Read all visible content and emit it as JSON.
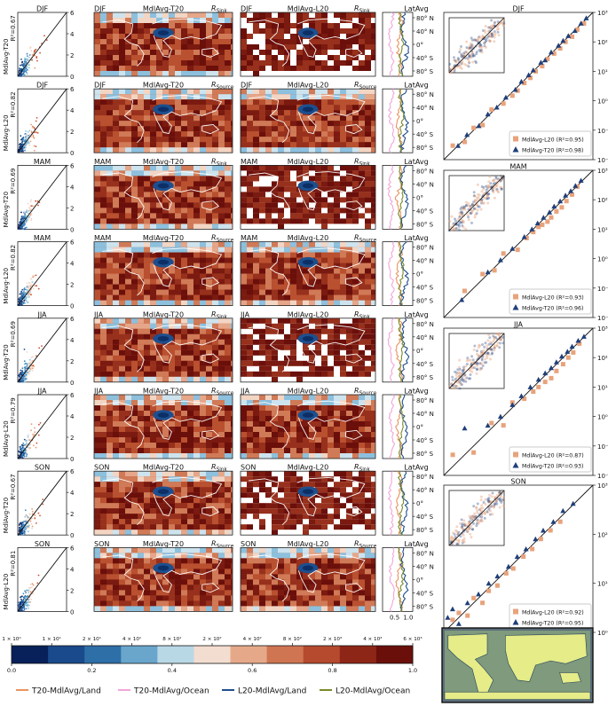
{
  "figure": {
    "seasons": [
      "DJF",
      "MAM",
      "JJA",
      "SON"
    ],
    "row_labels": {
      "scatter_t20": "MdlAvg-T20",
      "scatter_l20": "MdlAvg-L20",
      "map_t20": "MdlAvg-T20",
      "map_l20": "MdlAvg-L20",
      "r_sink": "R",
      "r_source": "R",
      "sink_sub": "Sink",
      "source_sub": "Source",
      "latavg": "LatAvg",
      "r2_prefix": "R²="
    },
    "colorbar": {
      "top_ticks": [
        "1 × 10⁰",
        "1 × 10¹",
        "2 × 10¹",
        "4 × 10¹",
        "8 × 10¹",
        "2 × 10²",
        "4 × 10²",
        "8 × 10²",
        "2 × 10³",
        "4 × 10³",
        "6 × 10³"
      ],
      "bottom_ticks": [
        "0.0",
        "0.2",
        "0.4",
        "0.6",
        "0.8",
        "1.0"
      ],
      "colors": [
        "#08215a",
        "#1a4a8c",
        "#2f6fa8",
        "#6aa6cc",
        "#b9d8e6",
        "#f3ddd0",
        "#e5a98a",
        "#cf7552",
        "#b54a2e",
        "#8e2617",
        "#6b0f0b"
      ]
    },
    "legend": [
      {
        "label": "T20-MdlAvg/Land",
        "color": "#e8945f"
      },
      {
        "label": "T20-MdlAvg/Ocean",
        "color": "#f2a6d9"
      },
      {
        "label": "L20-MdlAvg/Land",
        "color": "#1f4e8c"
      },
      {
        "label": "L20-MdlAvg/Ocean",
        "color": "#7a8a2a"
      }
    ],
    "lat_ticks": [
      "80° N",
      "40° N",
      "0°",
      "40° S",
      "80° S"
    ],
    "lat_xticks": [
      "0.5",
      "1.0"
    ]
  },
  "chart_data": [
    {
      "type": "scatter",
      "panel": "density-scatter",
      "season": "DJF",
      "ylabel": "MdlAvg-T20",
      "r2": "0.67",
      "yticks": [
        "0",
        "2",
        "4",
        "6"
      ]
    },
    {
      "type": "scatter",
      "panel": "density-scatter",
      "season": "DJF",
      "ylabel": "MdlAvg-L20",
      "r2": "0.82",
      "yticks": [
        "0",
        "2",
        "4",
        "6"
      ]
    },
    {
      "type": "scatter",
      "panel": "density-scatter",
      "season": "MAM",
      "ylabel": "MdlAvg-T20",
      "r2": "0.69",
      "yticks": [
        "0",
        "2",
        "4",
        "6"
      ]
    },
    {
      "type": "scatter",
      "panel": "density-scatter",
      "season": "MAM",
      "ylabel": "MdlAvg-L20",
      "r2": "0.82",
      "yticks": [
        "0",
        "2",
        "4",
        "6"
      ]
    },
    {
      "type": "scatter",
      "panel": "density-scatter",
      "season": "JJA",
      "ylabel": "MdlAvg-T20",
      "r2": "0.69",
      "yticks": [
        "0",
        "2",
        "4",
        "6"
      ]
    },
    {
      "type": "scatter",
      "panel": "density-scatter",
      "season": "JJA",
      "ylabel": "MdlAvg-L20",
      "r2": "0.79",
      "yticks": [
        "0",
        "2",
        "4",
        "6"
      ]
    },
    {
      "type": "scatter",
      "panel": "density-scatter",
      "season": "SON",
      "ylabel": "MdlAvg-T20",
      "r2": "0.67",
      "yticks": [
        "0",
        "2",
        "4",
        "6"
      ]
    },
    {
      "type": "scatter",
      "panel": "density-scatter",
      "season": "SON",
      "ylabel": "MdlAvg-L20",
      "r2": "0.81",
      "yticks": [
        "0",
        "2",
        "4",
        "6"
      ]
    },
    {
      "type": "scatter",
      "panel": "log-scatter",
      "season": "DJF",
      "xscale": "log",
      "yscale": "log",
      "yticks": [
        "10⁻²",
        "10⁻¹",
        "10⁰",
        "10¹",
        "10²",
        "10³"
      ],
      "series": [
        {
          "name": "MdlAvg-L20",
          "r2": "0.95",
          "marker": "square",
          "color": "#e8a37c",
          "points": [
            [
              0.02,
              0.03
            ],
            [
              0.05,
              0.04
            ],
            [
              0.1,
              0.12
            ],
            [
              0.2,
              0.15
            ],
            [
              0.4,
              0.5
            ],
            [
              1,
              0.8
            ],
            [
              2,
              1.5
            ],
            [
              3,
              2.2
            ],
            [
              5,
              4
            ],
            [
              8,
              6
            ],
            [
              12,
              10
            ],
            [
              20,
              15
            ],
            [
              30,
              26
            ],
            [
              50,
              40
            ],
            [
              80,
              60
            ],
            [
              120,
              100
            ],
            [
              200,
              150
            ],
            [
              300,
              260
            ],
            [
              500,
              420
            ]
          ]
        },
        {
          "name": "MdlAvg-T20",
          "r2": "0.98",
          "marker": "triangle",
          "color": "#1f3f7a",
          "points": [
            [
              0.03,
              0.03
            ],
            [
              0.06,
              0.07
            ],
            [
              0.15,
              0.14
            ],
            [
              0.3,
              0.35
            ],
            [
              0.6,
              0.6
            ],
            [
              1.2,
              1.3
            ],
            [
              2.5,
              2.4
            ],
            [
              4,
              4.5
            ],
            [
              7,
              7.5
            ],
            [
              10,
              11
            ],
            [
              18,
              20
            ],
            [
              25,
              24
            ],
            [
              40,
              45
            ],
            [
              70,
              75
            ],
            [
              100,
              110
            ],
            [
              150,
              160
            ],
            [
              250,
              240
            ],
            [
              400,
              430
            ],
            [
              600,
              640
            ]
          ]
        }
      ]
    },
    {
      "type": "scatter",
      "panel": "log-scatter",
      "season": "MAM",
      "xscale": "log",
      "yscale": "log",
      "yticks": [
        "10⁻²",
        "10⁻¹",
        "10⁰",
        "10¹",
        "10²",
        "10³"
      ],
      "series": [
        {
          "name": "MdlAvg-L20",
          "r2": "0.93",
          "marker": "square",
          "color": "#e8a37c",
          "points": [
            [
              0.05,
              0.08
            ],
            [
              0.2,
              0.3
            ],
            [
              0.5,
              0.4
            ],
            [
              1,
              1.5
            ],
            [
              3,
              2
            ],
            [
              6,
              5
            ],
            [
              10,
              8
            ],
            [
              15,
              12
            ],
            [
              20,
              14
            ],
            [
              30,
              18
            ],
            [
              40,
              25
            ],
            [
              60,
              40
            ],
            [
              90,
              55
            ],
            [
              130,
              90
            ],
            [
              200,
              150
            ],
            [
              300,
              280
            ]
          ]
        },
        {
          "name": "MdlAvg-T20",
          "r2": "0.96",
          "marker": "triangle",
          "color": "#1f3f7a",
          "points": [
            [
              0.04,
              0.04
            ],
            [
              0.3,
              0.35
            ],
            [
              0.8,
              0.9
            ],
            [
              2,
              2.2
            ],
            [
              5,
              5.5
            ],
            [
              9,
              10
            ],
            [
              14,
              16
            ],
            [
              22,
              25
            ],
            [
              35,
              38
            ],
            [
              50,
              60
            ],
            [
              80,
              90
            ],
            [
              120,
              140
            ],
            [
              180,
              200
            ],
            [
              260,
              300
            ],
            [
              400,
              450
            ]
          ]
        }
      ]
    },
    {
      "type": "scatter",
      "panel": "log-scatter",
      "season": "JJA",
      "xscale": "log",
      "yscale": "log",
      "yticks": [
        "10⁻²",
        "10⁻¹",
        "10⁰",
        "10¹",
        "10²",
        "10³"
      ],
      "series": [
        {
          "name": "MdlAvg-L20",
          "r2": "0.87",
          "marker": "square",
          "color": "#e8a37c",
          "points": [
            [
              0.02,
              0.05
            ],
            [
              0.1,
              0.06
            ],
            [
              0.4,
              0.6
            ],
            [
              1,
              0.5
            ],
            [
              2,
              3
            ],
            [
              5,
              4
            ],
            [
              10,
              7
            ],
            [
              15,
              10
            ],
            [
              25,
              15
            ],
            [
              40,
              20
            ],
            [
              60,
              35
            ],
            [
              100,
              60
            ],
            [
              150,
              100
            ],
            [
              220,
              150
            ],
            [
              350,
              300
            ]
          ]
        },
        {
          "name": "MdlAvg-T20",
          "r2": "0.93",
          "marker": "triangle",
          "color": "#1f3f7a",
          "points": [
            [
              0.05,
              0.4
            ],
            [
              0.3,
              0.5
            ],
            [
              0.8,
              1
            ],
            [
              2,
              2.5
            ],
            [
              4,
              5
            ],
            [
              8,
              10
            ],
            [
              15,
              18
            ],
            [
              25,
              30
            ],
            [
              40,
              45
            ],
            [
              60,
              70
            ],
            [
              90,
              110
            ],
            [
              140,
              160
            ],
            [
              200,
              240
            ],
            [
              320,
              380
            ],
            [
              500,
              520
            ]
          ]
        }
      ]
    },
    {
      "type": "scatter",
      "panel": "log-scatter",
      "season": "SON",
      "xscale": "log",
      "yscale": "log",
      "yticks": [
        "10⁰",
        "10¹",
        "10²",
        "10³"
      ],
      "series": [
        {
          "name": "MdlAvg-L20",
          "r2": "0.92",
          "marker": "square",
          "color": "#e8a37c",
          "points": [
            [
              1.5,
              1.8
            ],
            [
              2,
              2.5
            ],
            [
              3,
              2.2
            ],
            [
              4,
              5
            ],
            [
              6,
              4
            ],
            [
              8,
              7
            ],
            [
              12,
              9
            ],
            [
              18,
              16
            ],
            [
              25,
              20
            ],
            [
              40,
              35
            ],
            [
              60,
              50
            ],
            [
              90,
              80
            ],
            [
              140,
              120
            ],
            [
              220,
              180
            ]
          ]
        },
        {
          "name": "MdlAvg-T20",
          "r2": "0.95",
          "marker": "triangle",
          "color": "#1f3f7a",
          "points": [
            [
              1.2,
              2
            ],
            [
              1.5,
              3
            ],
            [
              2,
              1.5
            ],
            [
              3,
              4
            ],
            [
              5,
              6
            ],
            [
              8,
              10
            ],
            [
              12,
              14
            ],
            [
              20,
              22
            ],
            [
              30,
              35
            ],
            [
              45,
              50
            ],
            [
              70,
              80
            ],
            [
              100,
              120
            ],
            [
              160,
              180
            ],
            [
              250,
              300
            ],
            [
              400,
              420
            ]
          ]
        }
      ]
    }
  ]
}
